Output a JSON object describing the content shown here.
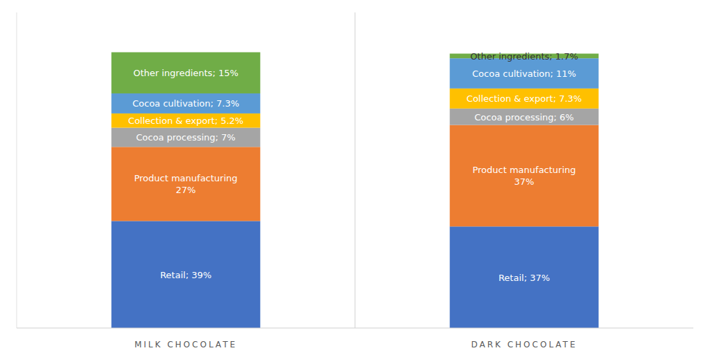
{
  "chart_data": {
    "type": "bar",
    "stacked": true,
    "data_labels": true,
    "tick_labels": "x",
    "grid": false,
    "categories": [
      "MILK CHOCOLATE",
      "DARK CHOCOLATE"
    ],
    "ylim": [
      0,
      115
    ],
    "series": [
      {
        "color": "#4472C4",
        "values": [
          39,
          37
        ],
        "value_labels": [
          "Retail; 39%",
          "Retail; 37%"
        ]
      },
      {
        "color": "#ED7D31",
        "values": [
          27,
          37
        ],
        "value_labels": [
          "Product manufacturing\n27%",
          "Product manufacturing\n37%"
        ]
      },
      {
        "color": "#A5A5A5",
        "values": [
          7,
          6
        ],
        "value_labels": [
          "Cocoa processing; 7%",
          "Cocoa processing; 6%"
        ]
      },
      {
        "color": "#FFC000",
        "values": [
          5.2,
          7.3
        ],
        "value_labels": [
          "Collection & export; 5.2%",
          "Collection & export; 7.3%"
        ]
      },
      {
        "color": "#5B9BD5",
        "values": [
          7.3,
          11
        ],
        "value_labels": [
          "Cocoa cultivation; 7.3%",
          "Cocoa cultivation; 11%"
        ]
      },
      {
        "color": "#70AD47",
        "values": [
          15,
          1.7
        ],
        "value_labels": [
          "Other ingredients; 15%",
          "Other ingredients; 1.7%"
        ]
      }
    ]
  }
}
